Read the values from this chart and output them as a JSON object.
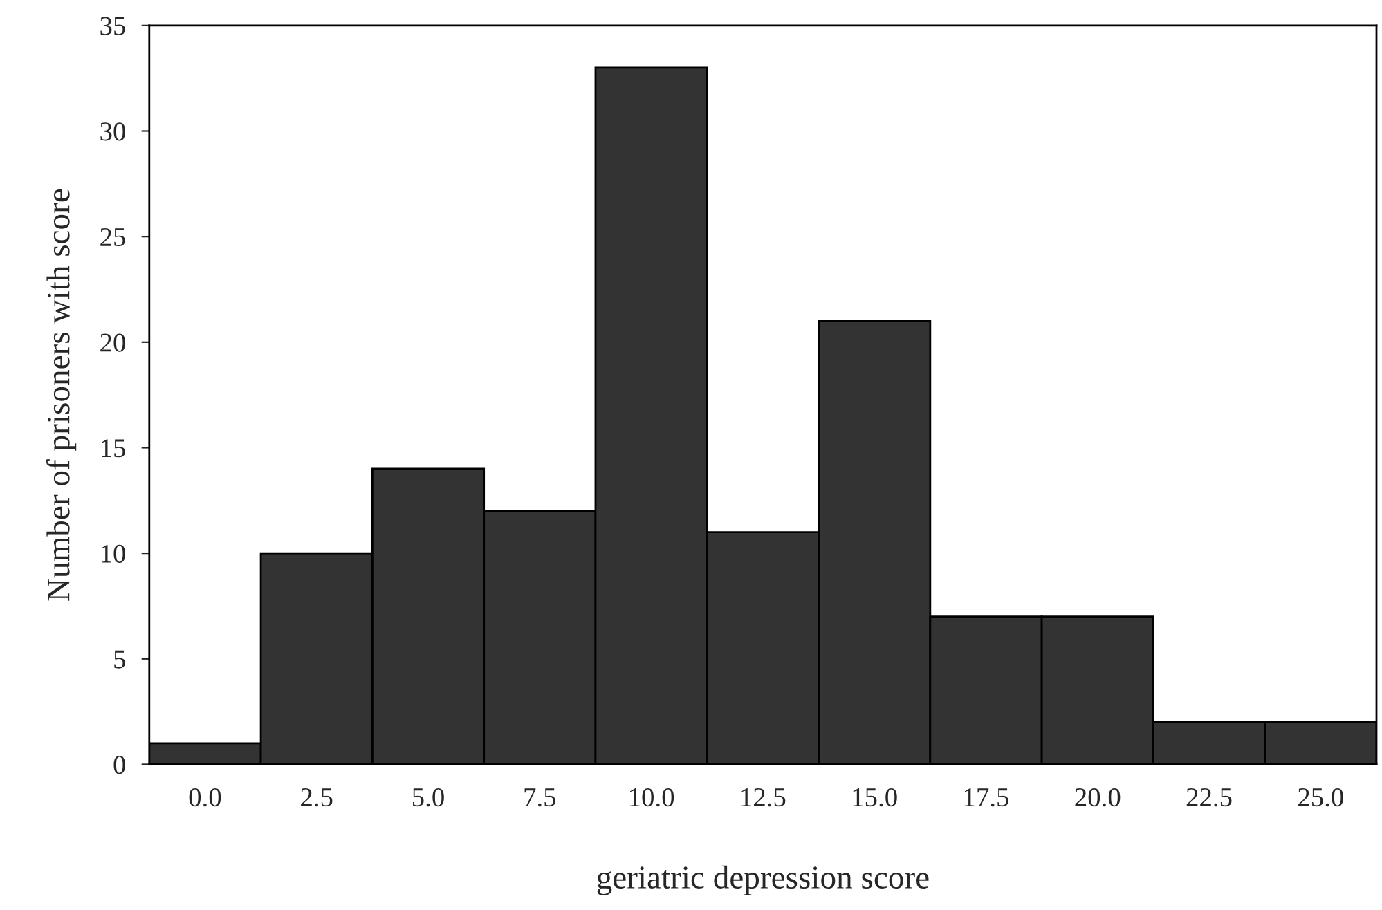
{
  "chart_data": {
    "type": "histogram",
    "xlabel": "geriatric depression score",
    "ylabel": "Number of prisoners with score",
    "bins": [
      -1.25,
      1.25,
      3.75,
      6.25,
      8.75,
      11.25,
      13.75,
      16.25,
      18.75,
      21.25,
      23.75,
      26.25
    ],
    "values": [
      1,
      10,
      14,
      12,
      33,
      11,
      21,
      7,
      7,
      2,
      2
    ],
    "color": "#333333",
    "xlim": [
      -1.25,
      26.25
    ],
    "xticks": [
      {
        "value": 0,
        "label": "0.0"
      },
      {
        "value": 2.5,
        "label": "2.5"
      },
      {
        "value": 5,
        "label": "5.0"
      },
      {
        "value": 7.5,
        "label": "7.5"
      },
      {
        "value": 10,
        "label": "10.0"
      },
      {
        "value": 12.5,
        "label": "12.5"
      },
      {
        "value": 15,
        "label": "15.0"
      },
      {
        "value": 17.5,
        "label": "17.5"
      },
      {
        "value": 20,
        "label": "20.0"
      },
      {
        "value": 22.5,
        "label": "22.5"
      },
      {
        "value": 25,
        "label": "25.0"
      }
    ],
    "ylim": [
      0,
      35
    ],
    "yticks": [
      0,
      5,
      10,
      15,
      20,
      25,
      30,
      35
    ],
    "grid": false,
    "legend": false
  }
}
